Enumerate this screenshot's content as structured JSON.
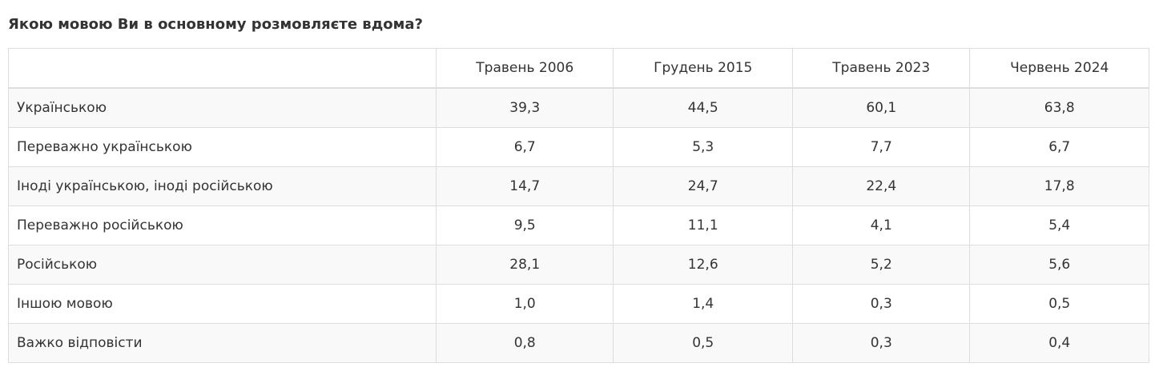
{
  "title": "Якою мовою Ви в основному розмовляєте вдома?",
  "table": {
    "header": [
      "Травень 2006",
      "Грудень 2015",
      "Травень 2023",
      "Червень 2024"
    ],
    "rows": [
      [
        "Українською",
        "39,3",
        "44,5",
        "60,1",
        "63,8"
      ],
      [
        "Переважно українською",
        "6,7",
        "5,3",
        "7,7",
        "6,7"
      ],
      [
        "Іноді українською, іноді російською",
        "14,7",
        "24,7",
        "22,4",
        "17,8"
      ],
      [
        "Переважно російською",
        "9,5",
        "11,1",
        "4,1",
        "5,4"
      ],
      [
        "Російською",
        "28,1",
        "12,6",
        "5,2",
        "5,6"
      ],
      [
        "Іншою мовою",
        "1,0",
        "1,4",
        "0,3",
        "0,5"
      ],
      [
        "Важко відповісти",
        "0,8",
        "0,5",
        "0,3",
        "0,4"
      ]
    ]
  }
}
